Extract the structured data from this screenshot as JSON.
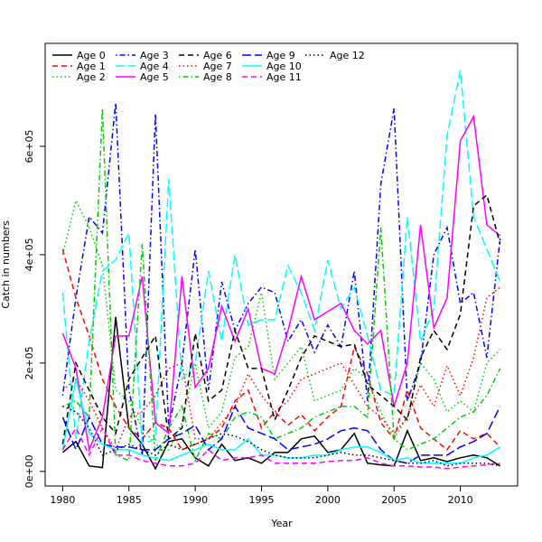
{
  "chart_data": {
    "type": "line",
    "xlabel": "Year",
    "ylabel": "Catch in numbers",
    "x": [
      1980,
      1981,
      1982,
      1983,
      1984,
      1985,
      1986,
      1987,
      1988,
      1989,
      1990,
      1991,
      1992,
      1993,
      1994,
      1995,
      1996,
      1997,
      1998,
      1999,
      2000,
      2001,
      2002,
      2003,
      2004,
      2005,
      2006,
      2007,
      2008,
      2009,
      2010,
      2011,
      2012,
      2013
    ],
    "xlim": [
      1978.68,
      2014.32
    ],
    "xticks": [
      1980,
      1985,
      1990,
      1995,
      2000,
      2005,
      2010
    ],
    "ylim": [
      -27000,
      790000
    ],
    "yticks": [
      {
        "value": 0,
        "label": "0e+00"
      },
      {
        "value": 200000,
        "label": "2e+05"
      },
      {
        "value": 400000,
        "label": "4e+05"
      },
      {
        "value": 600000,
        "label": "6e+05"
      }
    ],
    "legend": "top-left",
    "series": [
      {
        "name": "Age 0",
        "color": "#000000",
        "linestyle": "solid",
        "values": [
          35000,
          55000,
          10000,
          7000,
          285000,
          80000,
          50000,
          5000,
          55000,
          60000,
          25000,
          10000,
          50000,
          20000,
          25000,
          15000,
          35000,
          35000,
          60000,
          65000,
          35000,
          40000,
          70000,
          15000,
          12000,
          10000,
          75000,
          20000,
          25000,
          18000,
          25000,
          30000,
          25000,
          10000
        ]
      },
      {
        "name": "Age 1",
        "color": "#ff0000",
        "linestyle": "dashed",
        "values": [
          410000,
          320000,
          250000,
          170000,
          120000,
          80000,
          60000,
          90000,
          80000,
          40000,
          50000,
          60000,
          80000,
          130000,
          150000,
          80000,
          110000,
          85000,
          105000,
          75000,
          100000,
          120000,
          230000,
          180000,
          90000,
          60000,
          150000,
          80000,
          60000,
          40000,
          75000,
          60000,
          70000,
          45000
        ]
      },
      {
        "name": "Age 2",
        "color": "#00cd00",
        "linestyle": "dotted",
        "values": [
          400000,
          500000,
          450000,
          380000,
          150000,
          130000,
          80000,
          50000,
          40000,
          90000,
          200000,
          80000,
          110000,
          210000,
          230000,
          330000,
          170000,
          200000,
          230000,
          130000,
          140000,
          150000,
          190000,
          170000,
          110000,
          60000,
          100000,
          200000,
          170000,
          110000,
          130000,
          110000,
          200000,
          225000
        ]
      },
      {
        "name": "Age 3",
        "color": "#0000ff",
        "linestyle": "dotdash",
        "values": [
          140000,
          320000,
          470000,
          440000,
          680000,
          150000,
          30000,
          660000,
          80000,
          200000,
          410000,
          150000,
          350000,
          260000,
          310000,
          340000,
          330000,
          240000,
          280000,
          220000,
          270000,
          230000,
          370000,
          130000,
          530000,
          670000,
          130000,
          200000,
          400000,
          450000,
          310000,
          330000,
          210000,
          430000
        ]
      },
      {
        "name": "Age 4",
        "color": "#00ffff",
        "linestyle": "longdash",
        "values": [
          330000,
          60000,
          240000,
          370000,
          390000,
          440000,
          50000,
          60000,
          540000,
          170000,
          200000,
          370000,
          240000,
          400000,
          270000,
          280000,
          280000,
          380000,
          330000,
          260000,
          390000,
          300000,
          340000,
          250000,
          150000,
          140000,
          470000,
          240000,
          300000,
          620000,
          740000,
          470000,
          410000,
          350000
        ]
      },
      {
        "name": "Age 5",
        "color": "#ff00ff",
        "linestyle": "solid",
        "values": [
          255000,
          190000,
          40000,
          100000,
          250000,
          250000,
          360000,
          90000,
          70000,
          360000,
          155000,
          190000,
          305000,
          240000,
          300000,
          190000,
          180000,
          260000,
          360000,
          280000,
          295000,
          310000,
          260000,
          235000,
          260000,
          120000,
          200000,
          455000,
          265000,
          320000,
          610000,
          655000,
          455000,
          435000
        ]
      },
      {
        "name": "Age 6",
        "color": "#000000",
        "linestyle": "dashed",
        "values": [
          50000,
          200000,
          150000,
          100000,
          70000,
          170000,
          210000,
          250000,
          60000,
          80000,
          255000,
          130000,
          150000,
          260000,
          190000,
          190000,
          95000,
          150000,
          210000,
          250000,
          240000,
          230000,
          235000,
          160000,
          140000,
          120000,
          95000,
          210000,
          260000,
          225000,
          290000,
          490000,
          510000,
          420000
        ]
      },
      {
        "name": "Age 7",
        "color": "#ff0000",
        "linestyle": "dotted",
        "values": [
          150000,
          170000,
          130000,
          80000,
          40000,
          100000,
          110000,
          140000,
          190000,
          200000,
          60000,
          60000,
          90000,
          120000,
          180000,
          140000,
          110000,
          130000,
          170000,
          180000,
          190000,
          200000,
          160000,
          120000,
          100000,
          70000,
          100000,
          160000,
          120000,
          195000,
          140000,
          210000,
          320000,
          340000
        ]
      },
      {
        "name": "Age 8",
        "color": "#00cd00",
        "linestyle": "dotdash",
        "values": [
          120000,
          130000,
          100000,
          670000,
          30000,
          20000,
          420000,
          20000,
          80000,
          120000,
          20000,
          70000,
          60000,
          100000,
          110000,
          100000,
          60000,
          70000,
          80000,
          100000,
          110000,
          120000,
          120000,
          100000,
          450000,
          60000,
          40000,
          50000,
          60000,
          80000,
          100000,
          110000,
          140000,
          190000
        ]
      },
      {
        "name": "Age 9",
        "color": "#0000ff",
        "linestyle": "longdash",
        "values": [
          100000,
          40000,
          100000,
          50000,
          45000,
          45000,
          40000,
          40000,
          60000,
          70000,
          85000,
          40000,
          60000,
          120000,
          80000,
          70000,
          60000,
          40000,
          45000,
          50000,
          60000,
          75000,
          80000,
          75000,
          40000,
          20000,
          15000,
          30000,
          30000,
          30000,
          45000,
          55000,
          70000,
          120000
        ]
      },
      {
        "name": "Age 10",
        "color": "#00ffff",
        "linestyle": "solid",
        "values": [
          40000,
          170000,
          70000,
          50000,
          40000,
          40000,
          30000,
          25000,
          20000,
          30000,
          40000,
          50000,
          40000,
          40000,
          60000,
          30000,
          30000,
          25000,
          25000,
          30000,
          30000,
          40000,
          45000,
          45000,
          35000,
          20000,
          25000,
          15000,
          15000,
          15000,
          15000,
          25000,
          30000,
          45000
        ]
      },
      {
        "name": "Age 11",
        "color": "#ff00ff",
        "linestyle": "dashed",
        "values": [
          40000,
          80000,
          30000,
          80000,
          30000,
          30000,
          20000,
          15000,
          10000,
          10000,
          15000,
          40000,
          20000,
          25000,
          25000,
          30000,
          15000,
          15000,
          15000,
          15000,
          18000,
          20000,
          20000,
          25000,
          15000,
          10000,
          10000,
          8000,
          8000,
          5000,
          8000,
          10000,
          12000,
          15000
        ]
      },
      {
        "name": "Age 12",
        "color": "#000000",
        "linestyle": "dotted",
        "values": [
          120000,
          110000,
          80000,
          30000,
          40000,
          50000,
          40000,
          30000,
          50000,
          40000,
          50000,
          60000,
          70000,
          65000,
          55000,
          40000,
          30000,
          25000,
          25000,
          25000,
          30000,
          35000,
          30000,
          30000,
          25000,
          20000,
          15000,
          15000,
          20000,
          10000,
          15000,
          15000,
          15000,
          10000
        ]
      }
    ]
  }
}
